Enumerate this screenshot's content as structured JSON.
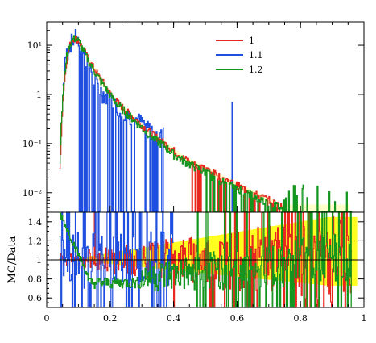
{
  "chart_data": {
    "type": "line",
    "top_panel": {
      "yscale": "log",
      "ylim": [
        0.004,
        30
      ],
      "ytick_labels": [
        "10⁻²",
        "10⁻¹",
        "1",
        "10¹"
      ],
      "ytick_values": [
        0.01,
        0.1,
        1,
        10
      ],
      "legend_position": "top-right"
    },
    "bottom_panel": {
      "ylabel": "MC/Data",
      "ylim": [
        0.5,
        1.5
      ],
      "ytick_labels": [
        "0.6",
        "0.8",
        "1",
        "1.2",
        "1.4"
      ],
      "ytick_values": [
        0.6,
        0.8,
        1.0,
        1.2,
        1.4
      ],
      "reference_line": 1.0,
      "band_color": "#ffff00"
    },
    "xlim": [
      0,
      1
    ],
    "xtick_labels": [
      "0",
      "0.2",
      "0.4",
      "0.6",
      "0.8",
      "1"
    ],
    "xtick_values": [
      0,
      0.2,
      0.4,
      0.6,
      0.8,
      1.0
    ],
    "series": [
      {
        "name": "1",
        "color": "#e8281e",
        "x": [
          0.04,
          0.05,
          0.06,
          0.07,
          0.08,
          0.09,
          0.1,
          0.12,
          0.14,
          0.16,
          0.18,
          0.2,
          0.22,
          0.25,
          0.28,
          0.31,
          0.34,
          0.37,
          0.4,
          0.43,
          0.46,
          0.5,
          0.54,
          0.58,
          0.62,
          0.66,
          0.7,
          0.74
        ],
        "y": [
          0.03,
          0.8,
          4,
          9,
          13,
          14,
          12,
          7,
          4,
          2.5,
          1.6,
          1.0,
          0.7,
          0.45,
          0.3,
          0.2,
          0.14,
          0.1,
          0.07,
          0.05,
          0.04,
          0.03,
          0.022,
          0.016,
          0.012,
          0.009,
          0.007,
          0.005
        ]
      },
      {
        "name": "1.1",
        "color": "#1f4fe0",
        "x": [
          0.05,
          0.06,
          0.07,
          0.08,
          0.09,
          0.1,
          0.11,
          0.12,
          0.13,
          0.14,
          0.15,
          0.16,
          0.17,
          0.18,
          0.2,
          0.22,
          0.25,
          0.27,
          0.29,
          0.31,
          0.33,
          0.36,
          0.585
        ],
        "y": [
          1.5,
          6,
          10,
          13,
          15,
          11,
          8,
          6,
          4,
          3,
          2,
          1.6,
          1.2,
          1.0,
          0.8,
          0.6,
          0.4,
          0.35,
          0.3,
          0.25,
          0.2,
          0.15,
          0.7
        ]
      },
      {
        "name": "1.2",
        "color": "#14961e",
        "x": [
          0.04,
          0.05,
          0.06,
          0.07,
          0.08,
          0.09,
          0.1,
          0.12,
          0.14,
          0.16,
          0.18,
          0.2,
          0.22,
          0.25,
          0.28,
          0.31,
          0.34,
          0.37,
          0.4,
          0.43,
          0.46,
          0.5,
          0.54,
          0.58,
          0.62,
          0.66,
          0.7,
          0.74
        ],
        "y": [
          0.05,
          1.0,
          5,
          10,
          13,
          14,
          12,
          6.5,
          3.8,
          2.3,
          1.5,
          0.95,
          0.65,
          0.42,
          0.28,
          0.18,
          0.12,
          0.09,
          0.06,
          0.045,
          0.035,
          0.026,
          0.019,
          0.014,
          0.011,
          0.008,
          0.006,
          0.005
        ]
      }
    ],
    "legend": [
      "1",
      "1.1",
      "1.2"
    ]
  }
}
